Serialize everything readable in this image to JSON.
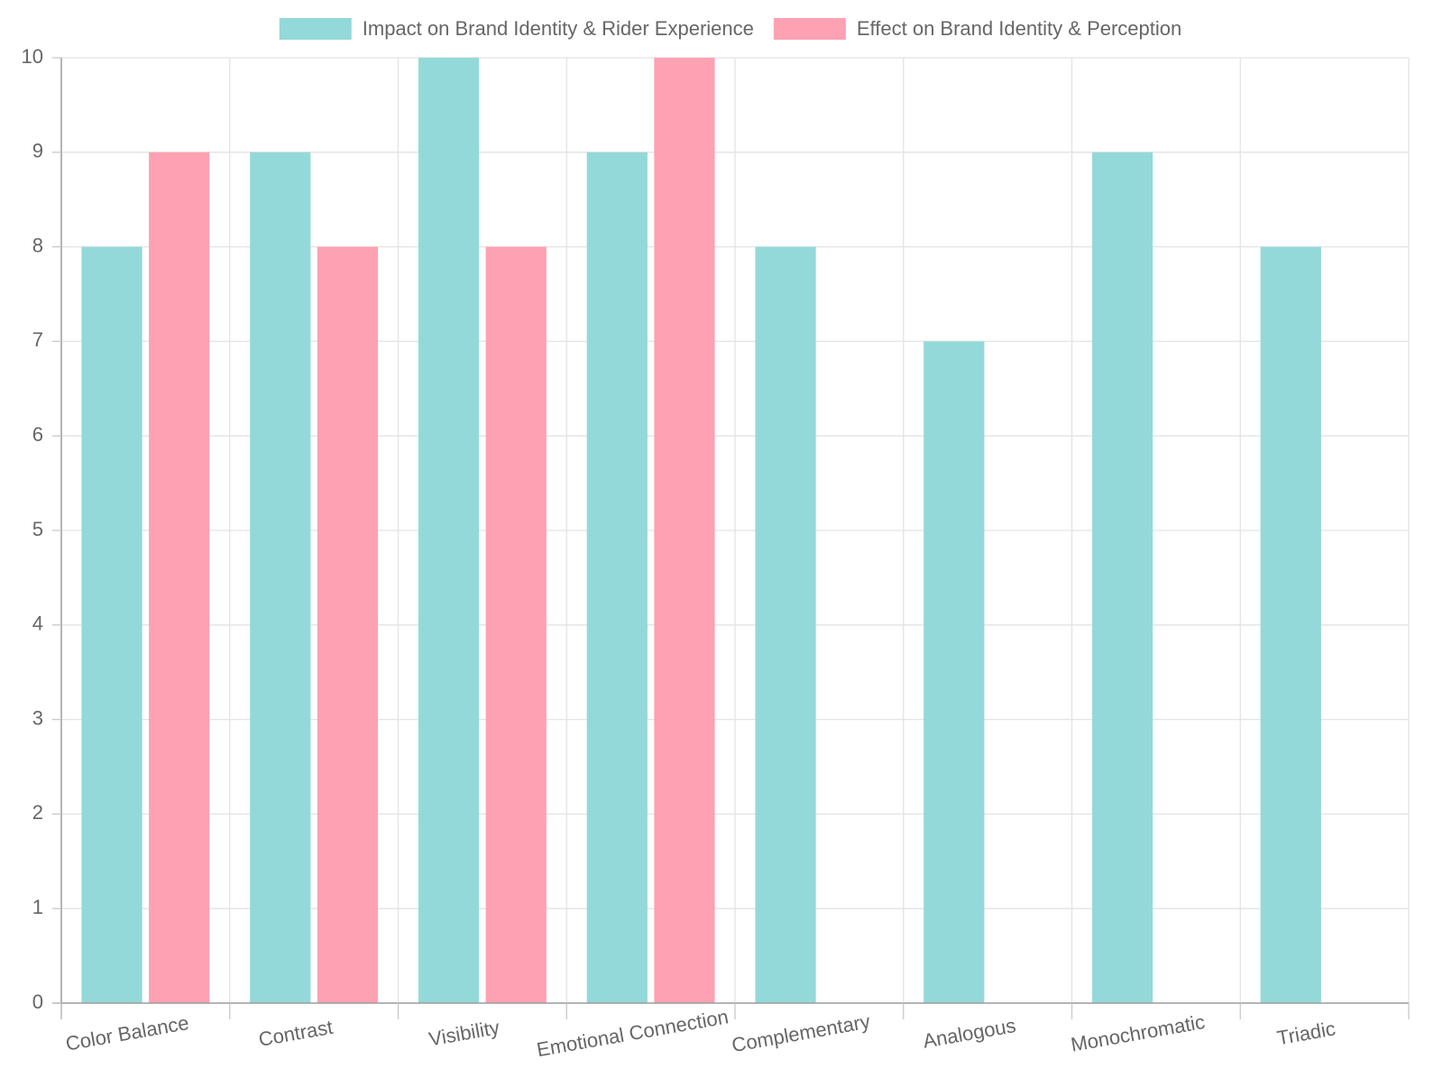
{
  "chart_data": {
    "type": "bar",
    "categories": [
      "Color Balance",
      "Contrast",
      "Visibility",
      "Emotional Connection",
      "Complementary",
      "Analogous",
      "Monochromatic",
      "Triadic"
    ],
    "series": [
      {
        "name": "Impact on Brand Identity & Rider Experience",
        "values": [
          8,
          9,
          10,
          9,
          8,
          7,
          9,
          8
        ],
        "color": "#94d9d9"
      },
      {
        "name": "Effect on Brand Identity & Perception",
        "values": [
          9,
          8,
          8,
          10,
          null,
          null,
          null,
          null
        ],
        "color": "#fea1b2"
      }
    ],
    "ylim": [
      0,
      10
    ],
    "yticks": [
      0,
      1,
      2,
      3,
      4,
      5,
      6,
      7,
      8,
      9,
      10
    ],
    "grid": true,
    "legend_position": "top-center"
  }
}
